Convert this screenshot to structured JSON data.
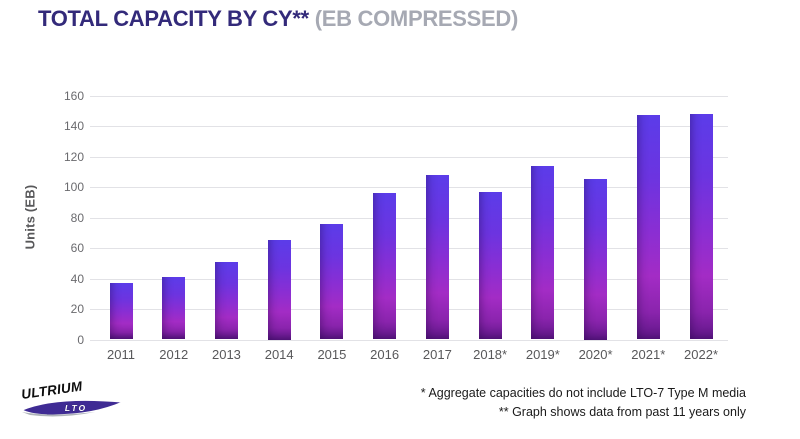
{
  "title": {
    "main": "TOTAL CAPACITY BY CY** ",
    "sub": "(EB COMPRESSED)"
  },
  "chart_data": {
    "type": "bar",
    "title": "TOTAL CAPACITY BY CY** (EB COMPRESSED)",
    "categories": [
      "2011",
      "2012",
      "2013",
      "2014",
      "2015",
      "2016",
      "2017",
      "2018*",
      "2019*",
      "2020*",
      "2021*",
      "2022*"
    ],
    "values": [
      37,
      41,
      51,
      65,
      76,
      96,
      108,
      97,
      114,
      105,
      147,
      148
    ],
    "xlabel": "",
    "ylabel": "Units (EB)",
    "ylim": [
      0,
      160
    ],
    "ytick_step": 20,
    "grid": true,
    "legend": "none",
    "bar_gradient": [
      "#5b3ce9",
      "#6c34e0",
      "#8a2ed3",
      "#a32cc5",
      "#8a24ad",
      "#5f1787"
    ]
  },
  "footnotes": {
    "line1": "* Aggregate capacities do not include LTO-7 Type M media",
    "line2": "** Graph shows data from past 11 years only"
  },
  "logo": {
    "brand": "ULTRIUM",
    "sub": "LTO"
  },
  "colors": {
    "title_main": "#332a7a",
    "title_sub": "#a6a9b3",
    "axis_text": "#58585a",
    "tick_text": "#6a6a6e",
    "gridline": "#e2e2e6",
    "footnote_text": "#1a1a1a",
    "logo_purple": "#3f2b94",
    "background": "#ffffff"
  }
}
